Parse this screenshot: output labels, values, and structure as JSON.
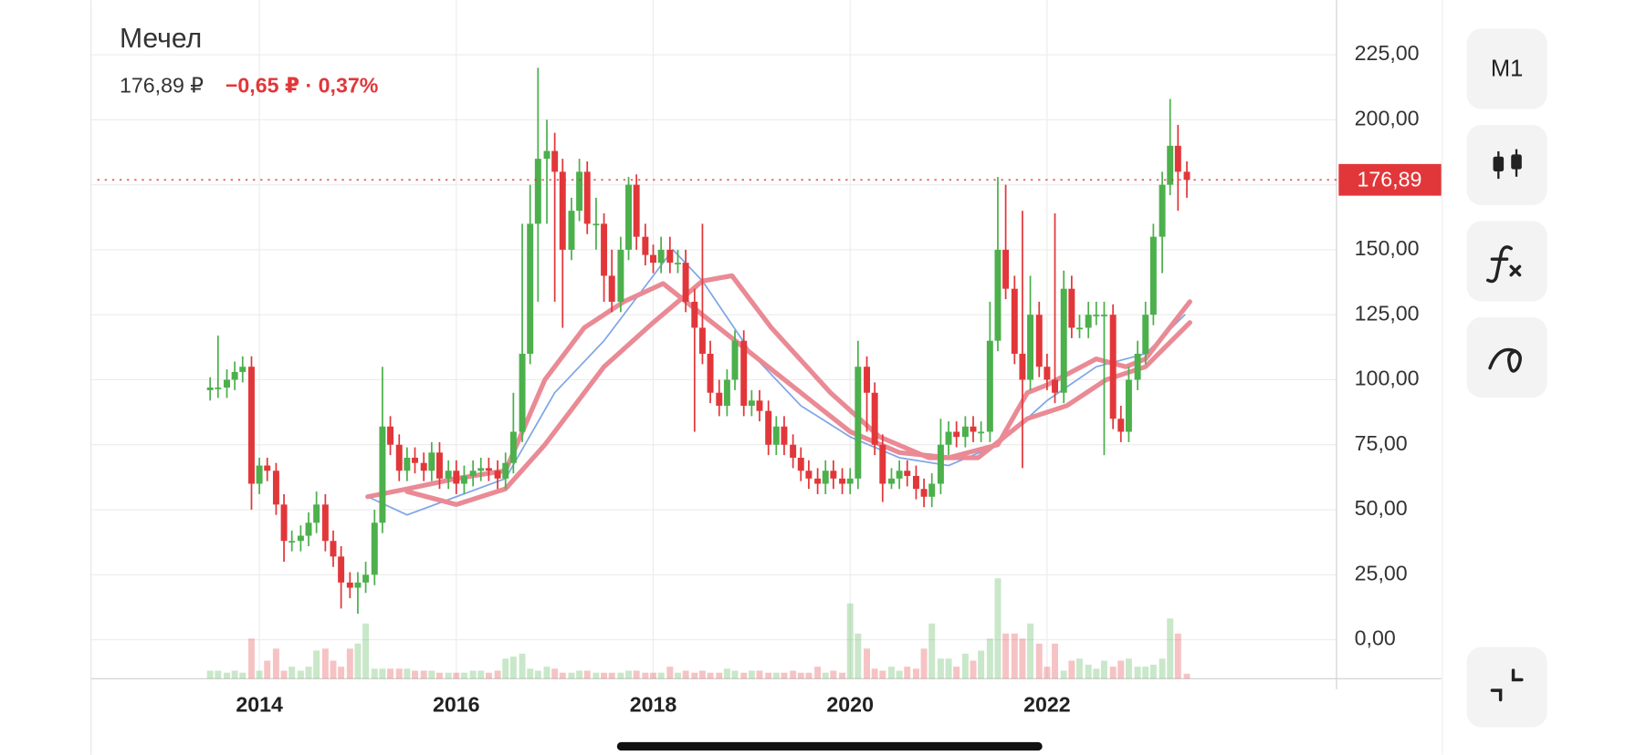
{
  "chart_data": {
    "type": "candlestick",
    "title": "Мечел",
    "price": "176,89 ₽",
    "change": "−0,65 ₽ · 0,37%",
    "current_price": {
      "value": 176.89,
      "label": "176,89"
    },
    "interval": "M1",
    "up_color": "#4cb04c",
    "down_color": "#e2373a",
    "ma_color_fast": "#7fa6e6",
    "xlim": [
      2012.29,
      2024.94
    ],
    "xticks": [
      2014,
      2016,
      2018,
      2020,
      2022
    ],
    "ylim": [
      -15,
      246
    ],
    "yticks": [
      {
        "value": 0,
        "label": "0,00"
      },
      {
        "value": 25,
        "label": "25,00"
      },
      {
        "value": 50,
        "label": "50,00"
      },
      {
        "value": 75,
        "label": "75,00"
      },
      {
        "value": 100,
        "label": "100,00"
      },
      {
        "value": 125,
        "label": "125,00"
      },
      {
        "value": 150,
        "label": "150,00"
      },
      {
        "value": 175,
        "label": "175,00"
      },
      {
        "value": 200,
        "label": "200,00"
      },
      {
        "value": 225,
        "label": "225,00"
      }
    ],
    "grid": true,
    "x": [
      2013.5,
      2013.58,
      2013.67,
      2013.75,
      2013.83,
      2013.92,
      2014.0,
      2014.08,
      2014.17,
      2014.25,
      2014.33,
      2014.42,
      2014.5,
      2014.58,
      2014.67,
      2014.75,
      2014.83,
      2014.92,
      2015.0,
      2015.08,
      2015.17,
      2015.25,
      2015.33,
      2015.42,
      2015.5,
      2015.58,
      2015.67,
      2015.75,
      2015.83,
      2015.92,
      2016.0,
      2016.08,
      2016.17,
      2016.25,
      2016.33,
      2016.42,
      2016.5,
      2016.58,
      2016.67,
      2016.75,
      2016.83,
      2016.92,
      2017.0,
      2017.08,
      2017.17,
      2017.25,
      2017.33,
      2017.42,
      2017.5,
      2017.58,
      2017.67,
      2017.75,
      2017.83,
      2017.92,
      2018.0,
      2018.08,
      2018.17,
      2018.25,
      2018.33,
      2018.42,
      2018.5,
      2018.58,
      2018.67,
      2018.75,
      2018.83,
      2018.92,
      2019.0,
      2019.08,
      2019.17,
      2019.25,
      2019.33,
      2019.42,
      2019.5,
      2019.58,
      2019.67,
      2019.75,
      2019.83,
      2019.92,
      2020.0,
      2020.08,
      2020.17,
      2020.25,
      2020.33,
      2020.42,
      2020.5,
      2020.58,
      2020.67,
      2020.75,
      2020.83,
      2020.92,
      2021.0,
      2021.08,
      2021.17,
      2021.25,
      2021.33,
      2021.42,
      2021.5,
      2021.58,
      2021.67,
      2021.75,
      2021.83,
      2021.92,
      2022.0,
      2022.08,
      2022.17,
      2022.25,
      2022.33,
      2022.42,
      2022.5,
      2022.58,
      2022.67,
      2022.75,
      2022.83,
      2022.92,
      2023.0,
      2023.08,
      2023.17,
      2023.25,
      2023.33,
      2023.42
    ],
    "open": [
      96,
      97,
      97,
      100,
      103,
      105,
      60,
      67,
      65,
      52,
      38,
      38,
      40,
      45,
      52,
      38,
      32,
      22,
      20,
      22,
      25,
      45,
      82,
      75,
      65,
      70,
      68,
      65,
      72,
      62,
      65,
      60,
      63,
      65,
      66,
      65,
      62,
      68,
      80,
      110,
      160,
      185,
      188,
      180,
      150,
      165,
      180,
      160,
      160,
      140,
      130,
      150,
      175,
      155,
      148,
      145,
      150,
      145,
      145,
      130,
      120,
      110,
      95,
      90,
      100,
      115,
      90,
      92,
      88,
      75,
      82,
      75,
      70,
      65,
      62,
      60,
      65,
      62,
      60,
      62,
      105,
      95,
      75,
      60,
      62,
      65,
      63,
      58,
      55,
      60,
      75,
      80,
      78,
      82,
      80,
      80,
      115,
      150,
      135,
      110,
      100,
      125,
      105,
      100,
      95,
      135,
      120,
      120,
      125,
      125,
      125,
      85,
      80,
      100,
      110,
      125,
      155,
      175,
      190,
      180
    ],
    "high": [
      101,
      117,
      104,
      107,
      109,
      109,
      70,
      70,
      68,
      56,
      42,
      44,
      49,
      57,
      56,
      42,
      36,
      26,
      26,
      30,
      50,
      105,
      86,
      79,
      74,
      74,
      72,
      76,
      76,
      69,
      69,
      67,
      69,
      70,
      70,
      69,
      72,
      95,
      160,
      175,
      220,
      200,
      195,
      185,
      170,
      185,
      184,
      170,
      164,
      150,
      155,
      178,
      179,
      160,
      152,
      155,
      155,
      150,
      150,
      135,
      160,
      115,
      100,
      104,
      119,
      119,
      96,
      96,
      92,
      86,
      86,
      79,
      74,
      69,
      66,
      69,
      69,
      66,
      66,
      115,
      109,
      99,
      79,
      66,
      69,
      69,
      67,
      62,
      64,
      85,
      84,
      84,
      86,
      86,
      84,
      130,
      178,
      175,
      140,
      165,
      140,
      130,
      110,
      164,
      142,
      140,
      125,
      130,
      130,
      130,
      129,
      90,
      105,
      115,
      130,
      160,
      180,
      208,
      198,
      184
    ],
    "low": [
      92,
      93,
      93,
      96,
      99,
      50,
      56,
      61,
      48,
      30,
      34,
      34,
      36,
      41,
      34,
      28,
      12,
      16,
      10,
      18,
      21,
      41,
      71,
      61,
      61,
      64,
      61,
      61,
      58,
      58,
      56,
      56,
      59,
      61,
      61,
      58,
      58,
      64,
      76,
      106,
      130,
      160,
      130,
      120,
      146,
      161,
      156,
      150,
      130,
      126,
      126,
      146,
      150,
      144,
      141,
      141,
      141,
      141,
      126,
      80,
      106,
      91,
      86,
      86,
      96,
      86,
      86,
      84,
      71,
      71,
      71,
      66,
      61,
      58,
      56,
      56,
      58,
      56,
      56,
      58,
      80,
      71,
      53,
      58,
      58,
      59,
      54,
      51,
      51,
      56,
      71,
      74,
      74,
      76,
      76,
      76,
      111,
      131,
      106,
      66,
      96,
      101,
      96,
      91,
      91,
      116,
      116,
      116,
      121,
      71,
      81,
      76,
      76,
      96,
      106,
      121,
      141,
      171,
      165,
      170
    ],
    "close": [
      97,
      97,
      100,
      103,
      105,
      60,
      67,
      65,
      52,
      38,
      38,
      40,
      45,
      52,
      38,
      32,
      22,
      20,
      22,
      25,
      45,
      82,
      75,
      65,
      70,
      68,
      65,
      72,
      62,
      65,
      60,
      63,
      65,
      66,
      65,
      62,
      68,
      80,
      110,
      160,
      185,
      188,
      180,
      150,
      165,
      180,
      160,
      160,
      140,
      130,
      150,
      175,
      155,
      148,
      145,
      150,
      145,
      145,
      130,
      120,
      110,
      95,
      90,
      100,
      115,
      90,
      92,
      88,
      75,
      82,
      75,
      70,
      65,
      62,
      60,
      65,
      62,
      60,
      62,
      105,
      95,
      75,
      60,
      62,
      65,
      63,
      58,
      55,
      60,
      75,
      80,
      78,
      82,
      80,
      80,
      115,
      150,
      135,
      110,
      100,
      125,
      105,
      100,
      95,
      135,
      120,
      120,
      125,
      125,
      125,
      85,
      80,
      100,
      110,
      125,
      155,
      175,
      190,
      180,
      176.89
    ],
    "volume": [
      8,
      8,
      6,
      8,
      6,
      40,
      8,
      18,
      30,
      8,
      12,
      8,
      12,
      28,
      30,
      18,
      12,
      30,
      35,
      55,
      10,
      10,
      10,
      10,
      10,
      8,
      8,
      8,
      6,
      6,
      6,
      6,
      8,
      8,
      6,
      8,
      20,
      22,
      25,
      10,
      8,
      12,
      10,
      6,
      6,
      8,
      8,
      6,
      6,
      6,
      6,
      8,
      8,
      6,
      6,
      6,
      12,
      6,
      8,
      6,
      8,
      6,
      6,
      10,
      8,
      6,
      8,
      8,
      6,
      6,
      6,
      8,
      6,
      6,
      12,
      6,
      8,
      6,
      75,
      45,
      30,
      10,
      8,
      12,
      8,
      12,
      10,
      30,
      55,
      20,
      20,
      12,
      25,
      18,
      28,
      40,
      100,
      45,
      45,
      40,
      55,
      35,
      12,
      35,
      8,
      18,
      20,
      14,
      10,
      18,
      12,
      18,
      20,
      12,
      12,
      14,
      20,
      60,
      45,
      5
    ],
    "ma_lines": [
      {
        "color": "#7fa6e6",
        "width": 1.5,
        "x": [
          2015.1,
          2015.5,
          2016.0,
          2016.5,
          2017.0,
          2017.5,
          2018.0,
          2018.2,
          2018.5,
          2019.0,
          2019.5,
          2020.0,
          2020.5,
          2021.0,
          2021.5,
          2022.0,
          2022.5,
          2023.0,
          2023.4
        ],
        "values": [
          55,
          48,
          55,
          62,
          95,
          115,
          140,
          150,
          138,
          110,
          90,
          78,
          70,
          67,
          75,
          92,
          105,
          110,
          125
        ]
      },
      {
        "color": "#e98a95",
        "width": 4.5,
        "x": [
          2015.1,
          2015.5,
          2016.0,
          2016.5,
          2016.9,
          2017.3,
          2017.7,
          2018.1,
          2018.5,
          2019.0,
          2019.5,
          2020.0,
          2020.5,
          2021.0,
          2021.5,
          2021.8,
          2022.0,
          2022.5,
          2022.8,
          2023.0,
          2023.45
        ],
        "values": [
          55,
          58,
          62,
          65,
          100,
          120,
          130,
          137,
          125,
          110,
          95,
          80,
          72,
          70,
          75,
          95,
          98,
          108,
          105,
          108,
          130
        ]
      },
      {
        "color": "#e98a95",
        "width": 4.5,
        "x": [
          2015.5,
          2016.0,
          2016.5,
          2016.9,
          2017.5,
          2018.0,
          2018.5,
          2018.8,
          2019.2,
          2019.8,
          2020.3,
          2020.8,
          2021.3,
          2021.8,
          2022.2,
          2022.6,
          2023.0,
          2023.45
        ],
        "values": [
          57,
          52,
          58,
          75,
          105,
          122,
          138,
          140,
          120,
          95,
          78,
          70,
          70,
          85,
          90,
          100,
          105,
          122
        ]
      }
    ]
  }
}
